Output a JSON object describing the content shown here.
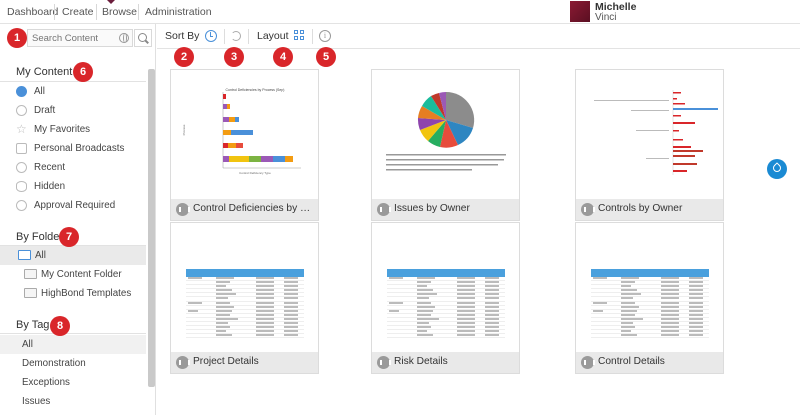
{
  "nav": {
    "items": [
      "Dashboard",
      "Create",
      "Browse",
      "Administration"
    ],
    "user_first": "Michelle",
    "user_last": "Vinci"
  },
  "search": {
    "placeholder": "Search Content"
  },
  "toolbar": {
    "sort_by": "Sort By",
    "layout": "Layout"
  },
  "badges": [
    "1",
    "2",
    "3",
    "4",
    "5",
    "6",
    "7",
    "8"
  ],
  "my_content": {
    "title": "My Content",
    "items": [
      {
        "label": "All",
        "icon": "globe-icon"
      },
      {
        "label": "Draft",
        "icon": "draft-icon"
      },
      {
        "label": "My Favorites",
        "icon": "star-icon"
      },
      {
        "label": "Personal Broadcasts",
        "icon": "broadcast-icon"
      },
      {
        "label": "Recent",
        "icon": "clock-icon"
      },
      {
        "label": "Hidden",
        "icon": "eye-icon"
      },
      {
        "label": "Approval Required",
        "icon": "check-icon"
      }
    ]
  },
  "by_folder": {
    "title": "By Folder",
    "items": [
      "All",
      "My Content Folder",
      "HighBond Templates"
    ]
  },
  "by_tag": {
    "title": "By Tag",
    "items": [
      "All",
      "Demonstration",
      "Exceptions",
      "Issues"
    ]
  },
  "cards": [
    {
      "title": "Control Deficiencies by Proc...",
      "thumb_title": "Control Deficiencies by Process (Sep)",
      "thumb_xlabel": "Control Deficiency Type",
      "thumb_ylabel": "Process"
    },
    {
      "title": "Issues by Owner"
    },
    {
      "title": "Controls by Owner"
    },
    {
      "title": "Project Details"
    },
    {
      "title": "Risk Details"
    },
    {
      "title": "Control Details"
    }
  ],
  "colors": {
    "accent": "#4a90d9",
    "badge": "#d9262a",
    "brand": "#6b1d3c"
  }
}
